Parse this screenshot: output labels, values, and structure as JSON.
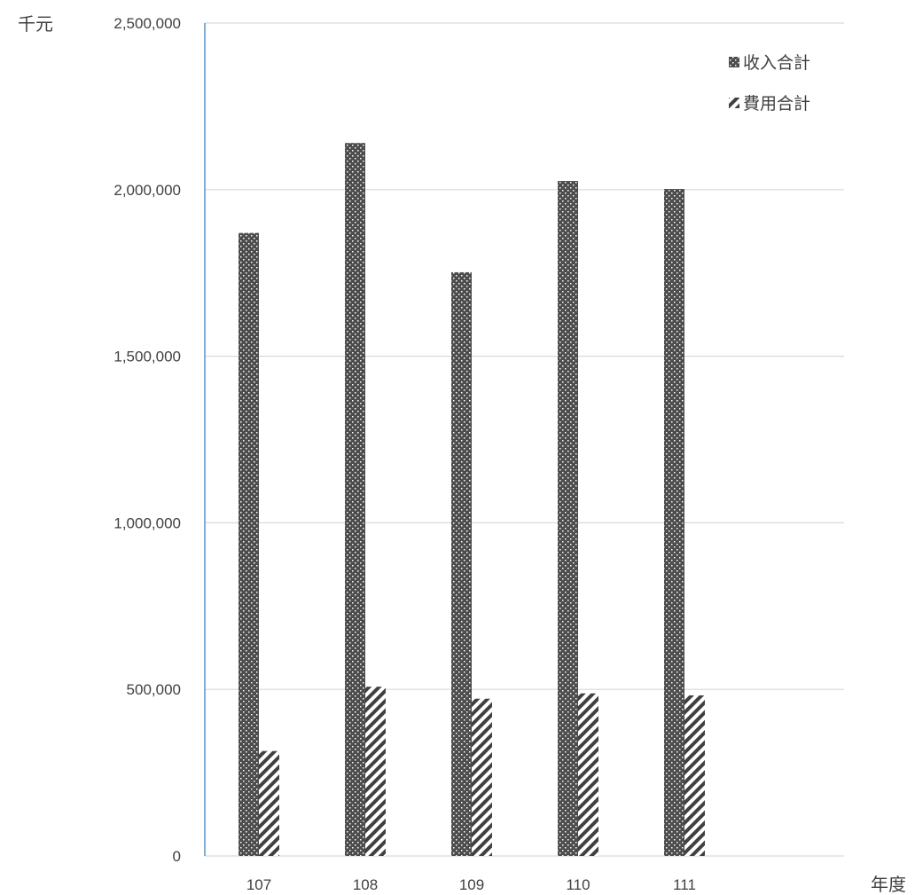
{
  "chart_data": {
    "type": "bar",
    "categories": [
      "107",
      "108",
      "109",
      "110",
      "111"
    ],
    "series": [
      {
        "name": "收入合計",
        "values": [
          1870000,
          2140000,
          1752000,
          2026000,
          2002000
        ],
        "color": "#4d4d4d",
        "pattern": "dotted"
      },
      {
        "name": "費用合計",
        "values": [
          315000,
          508000,
          472000,
          488000,
          482000
        ],
        "color": "#404040",
        "pattern": "diagonal-stripes"
      }
    ],
    "y_ticks": [
      "0",
      "500,000",
      "1,000,000",
      "1,500,000",
      "2,000,000",
      "2,500,000"
    ],
    "ylim": [
      0,
      2500000
    ],
    "y_unit": "千元",
    "x_unit": "年度",
    "grid": true,
    "legend_position": "top-right",
    "colors": {
      "grid": "#d9d9d9",
      "axis": "#5b9bd5",
      "text": "#404040"
    }
  }
}
